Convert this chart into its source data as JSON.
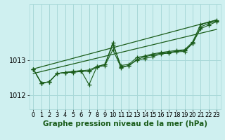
{
  "bg_color": "#cff0f0",
  "grid_color": "#a8d8d8",
  "line_color": "#1a5c1a",
  "marker_color": "#1a5c1a",
  "xlabel": "Graphe pression niveau de la mer (hPa)",
  "xlabel_fontsize": 7.5,
  "ylabel_fontsize": 7,
  "tick_fontsize": 6,
  "xlim": [
    -0.5,
    23.5
  ],
  "ylim": [
    1011.6,
    1014.6
  ],
  "yticks": [
    1012,
    1013
  ],
  "xticks": [
    0,
    1,
    2,
    3,
    4,
    5,
    6,
    7,
    8,
    9,
    10,
    11,
    12,
    13,
    14,
    15,
    16,
    17,
    18,
    19,
    20,
    21,
    22,
    23
  ],
  "series1": [
    1012.75,
    1012.35,
    1012.38,
    1012.62,
    1012.65,
    1012.68,
    1012.7,
    1012.72,
    1012.82,
    1012.88,
    1013.45,
    1012.85,
    1012.88,
    1013.08,
    1013.12,
    1013.18,
    1013.22,
    1013.25,
    1013.28,
    1013.3,
    1013.52,
    1014.02,
    1014.08,
    1014.15
  ],
  "series2": [
    1012.75,
    1012.35,
    1012.38,
    1012.62,
    1012.65,
    1012.68,
    1012.7,
    1012.3,
    1012.82,
    1012.88,
    1013.5,
    1012.78,
    1012.85,
    1013.02,
    1013.1,
    1013.15,
    1013.2,
    1013.22,
    1013.26,
    1013.28,
    1013.48,
    1013.95,
    1014.05,
    1014.12
  ],
  "series3": [
    1012.75,
    1012.35,
    1012.38,
    1012.62,
    1012.65,
    1012.65,
    1012.68,
    1012.68,
    1012.8,
    1012.85,
    1013.3,
    1012.8,
    1012.85,
    1013.0,
    1013.05,
    1013.1,
    1013.18,
    1013.2,
    1013.24,
    1013.25,
    1013.48,
    1013.9,
    1014.0,
    1014.1
  ],
  "trend1_x": [
    0,
    23
  ],
  "trend1_y": [
    1012.75,
    1014.15
  ],
  "trend2_x": [
    0,
    23
  ],
  "trend2_y": [
    1012.62,
    1013.88
  ]
}
